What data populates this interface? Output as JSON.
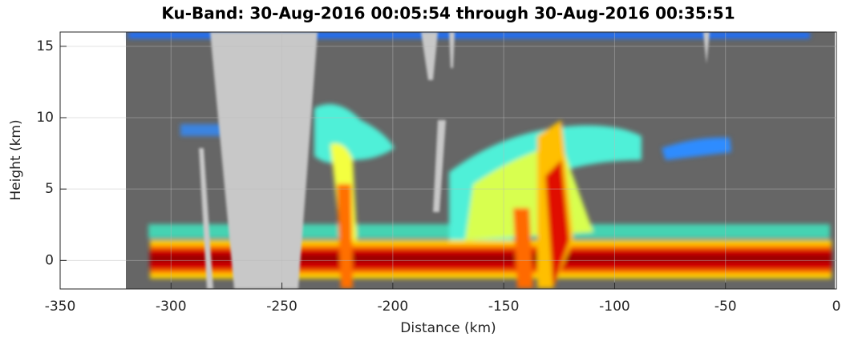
{
  "chart_data": {
    "type": "radar-curtain",
    "title": "Ku-Band: 30-Aug-2016 00:05:54 through 30-Aug-2016 00:35:51",
    "xlabel": "Distance (km)",
    "ylabel": "Height (km)",
    "xlim": [
      -350,
      0
    ],
    "ylim": [
      -2,
      16
    ],
    "xticks": [
      -350,
      -300,
      -250,
      -200,
      -150,
      -100,
      -50,
      0
    ],
    "yticks": [
      0,
      5,
      10,
      15
    ],
    "grid": true
  }
}
